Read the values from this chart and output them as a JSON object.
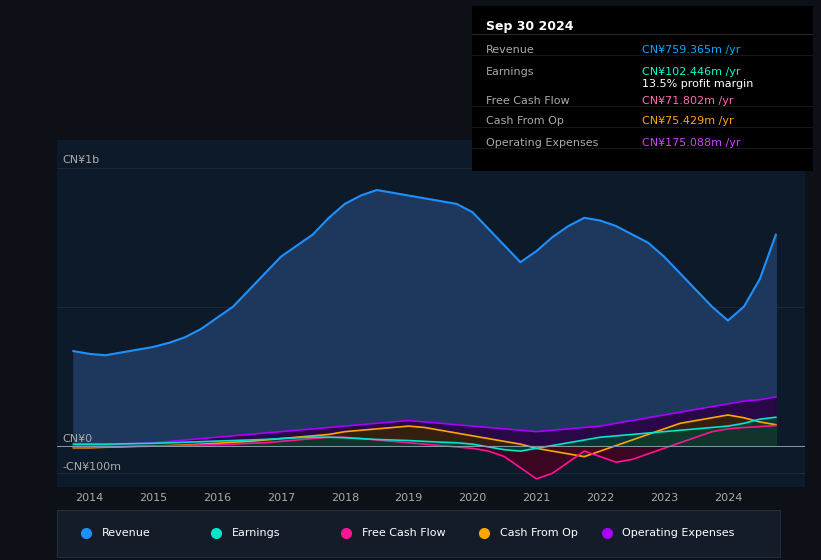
{
  "bg_color": "#0d1117",
  "plot_bg_color": "#0d1a2a",
  "title_box": {
    "date": "Sep 30 2024",
    "rows": [
      {
        "label": "Revenue",
        "value": "CN¥759.365m /yr",
        "value_color": "#00aaff"
      },
      {
        "label": "Earnings",
        "value": "CN¥102.446m /yr",
        "value_color": "#00ffcc"
      },
      {
        "label": "",
        "value": "13.5% profit margin",
        "value_color": "#ffffff"
      },
      {
        "label": "Free Cash Flow",
        "value": "CN¥71.802m /yr",
        "value_color": "#ff69b4"
      },
      {
        "label": "Cash From Op",
        "value": "CN¥75.429m /yr",
        "value_color": "#ffa500"
      },
      {
        "label": "Operating Expenses",
        "value": "CN¥175.088m /yr",
        "value_color": "#cc44ff"
      }
    ]
  },
  "ylabel_top": "CN¥1b",
  "ylabel_zero": "CN¥0",
  "ylabel_neg": "-CN¥100m",
  "xlim": [
    2013.5,
    2025.2
  ],
  "ylim": [
    -150,
    1100
  ],
  "xticks": [
    2014,
    2015,
    2016,
    2017,
    2018,
    2019,
    2020,
    2021,
    2022,
    2023,
    2024
  ],
  "series": {
    "revenue": {
      "color": "#1e90ff",
      "fill_color": "#1e3a5f",
      "x": [
        2013.75,
        2014.0,
        2014.25,
        2014.5,
        2014.75,
        2015.0,
        2015.25,
        2015.5,
        2015.75,
        2016.0,
        2016.25,
        2016.5,
        2016.75,
        2017.0,
        2017.25,
        2017.5,
        2017.75,
        2018.0,
        2018.25,
        2018.5,
        2018.75,
        2019.0,
        2019.25,
        2019.5,
        2019.75,
        2020.0,
        2020.25,
        2020.5,
        2020.75,
        2021.0,
        2021.25,
        2021.5,
        2021.75,
        2022.0,
        2022.25,
        2022.5,
        2022.75,
        2023.0,
        2023.25,
        2023.5,
        2023.75,
        2024.0,
        2024.25,
        2024.5,
        2024.75
      ],
      "y": [
        340,
        330,
        325,
        335,
        345,
        355,
        370,
        390,
        420,
        460,
        500,
        560,
        620,
        680,
        720,
        760,
        820,
        870,
        900,
        920,
        910,
        900,
        890,
        880,
        870,
        840,
        780,
        720,
        660,
        700,
        750,
        790,
        820,
        810,
        790,
        760,
        730,
        680,
        620,
        560,
        500,
        450,
        500,
        600,
        759
      ]
    },
    "earnings": {
      "color": "#00e5cc",
      "fill_color": "#004433",
      "x": [
        2013.75,
        2014.0,
        2014.25,
        2014.5,
        2014.75,
        2015.0,
        2015.25,
        2015.5,
        2015.75,
        2016.0,
        2016.25,
        2016.5,
        2016.75,
        2017.0,
        2017.25,
        2017.5,
        2017.75,
        2018.0,
        2018.25,
        2018.5,
        2018.75,
        2019.0,
        2019.25,
        2019.5,
        2019.75,
        2020.0,
        2020.25,
        2020.5,
        2020.75,
        2021.0,
        2021.25,
        2021.5,
        2021.75,
        2022.0,
        2022.25,
        2022.5,
        2022.75,
        2023.0,
        2023.25,
        2023.5,
        2023.75,
        2024.0,
        2024.25,
        2024.5,
        2024.75
      ],
      "y": [
        5,
        5,
        5,
        6,
        7,
        8,
        10,
        12,
        14,
        16,
        18,
        20,
        22,
        25,
        28,
        30,
        30,
        28,
        25,
        22,
        20,
        18,
        15,
        12,
        10,
        5,
        -5,
        -15,
        -20,
        -10,
        0,
        10,
        20,
        30,
        35,
        40,
        45,
        50,
        55,
        60,
        65,
        70,
        80,
        95,
        102
      ]
    },
    "free_cash_flow": {
      "color": "#ff1493",
      "fill_color": "#4a0020",
      "x": [
        2013.75,
        2014.0,
        2014.25,
        2014.5,
        2014.75,
        2015.0,
        2015.25,
        2015.5,
        2015.75,
        2016.0,
        2016.25,
        2016.5,
        2016.75,
        2017.0,
        2017.25,
        2017.5,
        2017.75,
        2018.0,
        2018.25,
        2018.5,
        2018.75,
        2019.0,
        2019.25,
        2019.5,
        2019.75,
        2020.0,
        2020.25,
        2020.5,
        2020.75,
        2021.0,
        2021.25,
        2021.5,
        2021.75,
        2022.0,
        2022.25,
        2022.5,
        2022.75,
        2023.0,
        2023.25,
        2023.5,
        2023.75,
        2024.0,
        2024.25,
        2024.5,
        2024.75
      ],
      "y": [
        -5,
        -5,
        -4,
        -3,
        -2,
        -2,
        -1,
        0,
        2,
        3,
        5,
        8,
        10,
        15,
        20,
        25,
        30,
        30,
        25,
        20,
        15,
        10,
        5,
        0,
        -5,
        -10,
        -20,
        -40,
        -80,
        -120,
        -100,
        -60,
        -20,
        -40,
        -60,
        -50,
        -30,
        -10,
        10,
        30,
        50,
        60,
        65,
        68,
        72
      ]
    },
    "cash_from_op": {
      "color": "#ffa500",
      "fill_color": "#3a2800",
      "x": [
        2013.75,
        2014.0,
        2014.25,
        2014.5,
        2014.75,
        2015.0,
        2015.25,
        2015.5,
        2015.75,
        2016.0,
        2016.25,
        2016.5,
        2016.75,
        2017.0,
        2017.25,
        2017.5,
        2017.75,
        2018.0,
        2018.25,
        2018.5,
        2018.75,
        2019.0,
        2019.25,
        2019.5,
        2019.75,
        2020.0,
        2020.25,
        2020.5,
        2020.75,
        2021.0,
        2021.25,
        2021.5,
        2021.75,
        2022.0,
        2022.25,
        2022.5,
        2022.75,
        2023.0,
        2023.25,
        2023.5,
        2023.75,
        2024.0,
        2024.25,
        2024.5,
        2024.75
      ],
      "y": [
        -8,
        -8,
        -6,
        -5,
        -3,
        -2,
        0,
        2,
        5,
        8,
        12,
        15,
        20,
        25,
        30,
        35,
        40,
        50,
        55,
        60,
        65,
        70,
        65,
        55,
        45,
        35,
        25,
        15,
        5,
        -10,
        -20,
        -30,
        -40,
        -20,
        0,
        20,
        40,
        60,
        80,
        90,
        100,
        110,
        100,
        85,
        75
      ]
    },
    "operating_expenses": {
      "color": "#aa00ff",
      "fill_color": "#2a0044",
      "x": [
        2013.75,
        2014.0,
        2014.25,
        2014.5,
        2014.75,
        2015.0,
        2015.25,
        2015.5,
        2015.75,
        2016.0,
        2016.25,
        2016.5,
        2016.75,
        2017.0,
        2017.25,
        2017.5,
        2017.75,
        2018.0,
        2018.25,
        2018.5,
        2018.75,
        2019.0,
        2019.25,
        2019.5,
        2019.75,
        2020.0,
        2020.25,
        2020.5,
        2020.75,
        2021.0,
        2021.25,
        2021.5,
        2021.75,
        2022.0,
        2022.25,
        2022.5,
        2022.75,
        2023.0,
        2023.25,
        2023.5,
        2023.75,
        2024.0,
        2024.25,
        2024.5,
        2024.75
      ],
      "y": [
        0,
        0,
        2,
        5,
        8,
        10,
        15,
        20,
        25,
        30,
        35,
        40,
        45,
        50,
        55,
        60,
        65,
        70,
        75,
        80,
        85,
        90,
        85,
        80,
        75,
        70,
        65,
        60,
        55,
        50,
        55,
        60,
        65,
        70,
        80,
        90,
        100,
        110,
        120,
        130,
        140,
        150,
        160,
        165,
        175
      ]
    }
  },
  "legend": [
    {
      "label": "Revenue",
      "color": "#1e90ff"
    },
    {
      "label": "Earnings",
      "color": "#00e5cc"
    },
    {
      "label": "Free Cash Flow",
      "color": "#ff1493"
    },
    {
      "label": "Cash From Op",
      "color": "#ffa500"
    },
    {
      "label": "Operating Expenses",
      "color": "#aa00ff"
    }
  ]
}
